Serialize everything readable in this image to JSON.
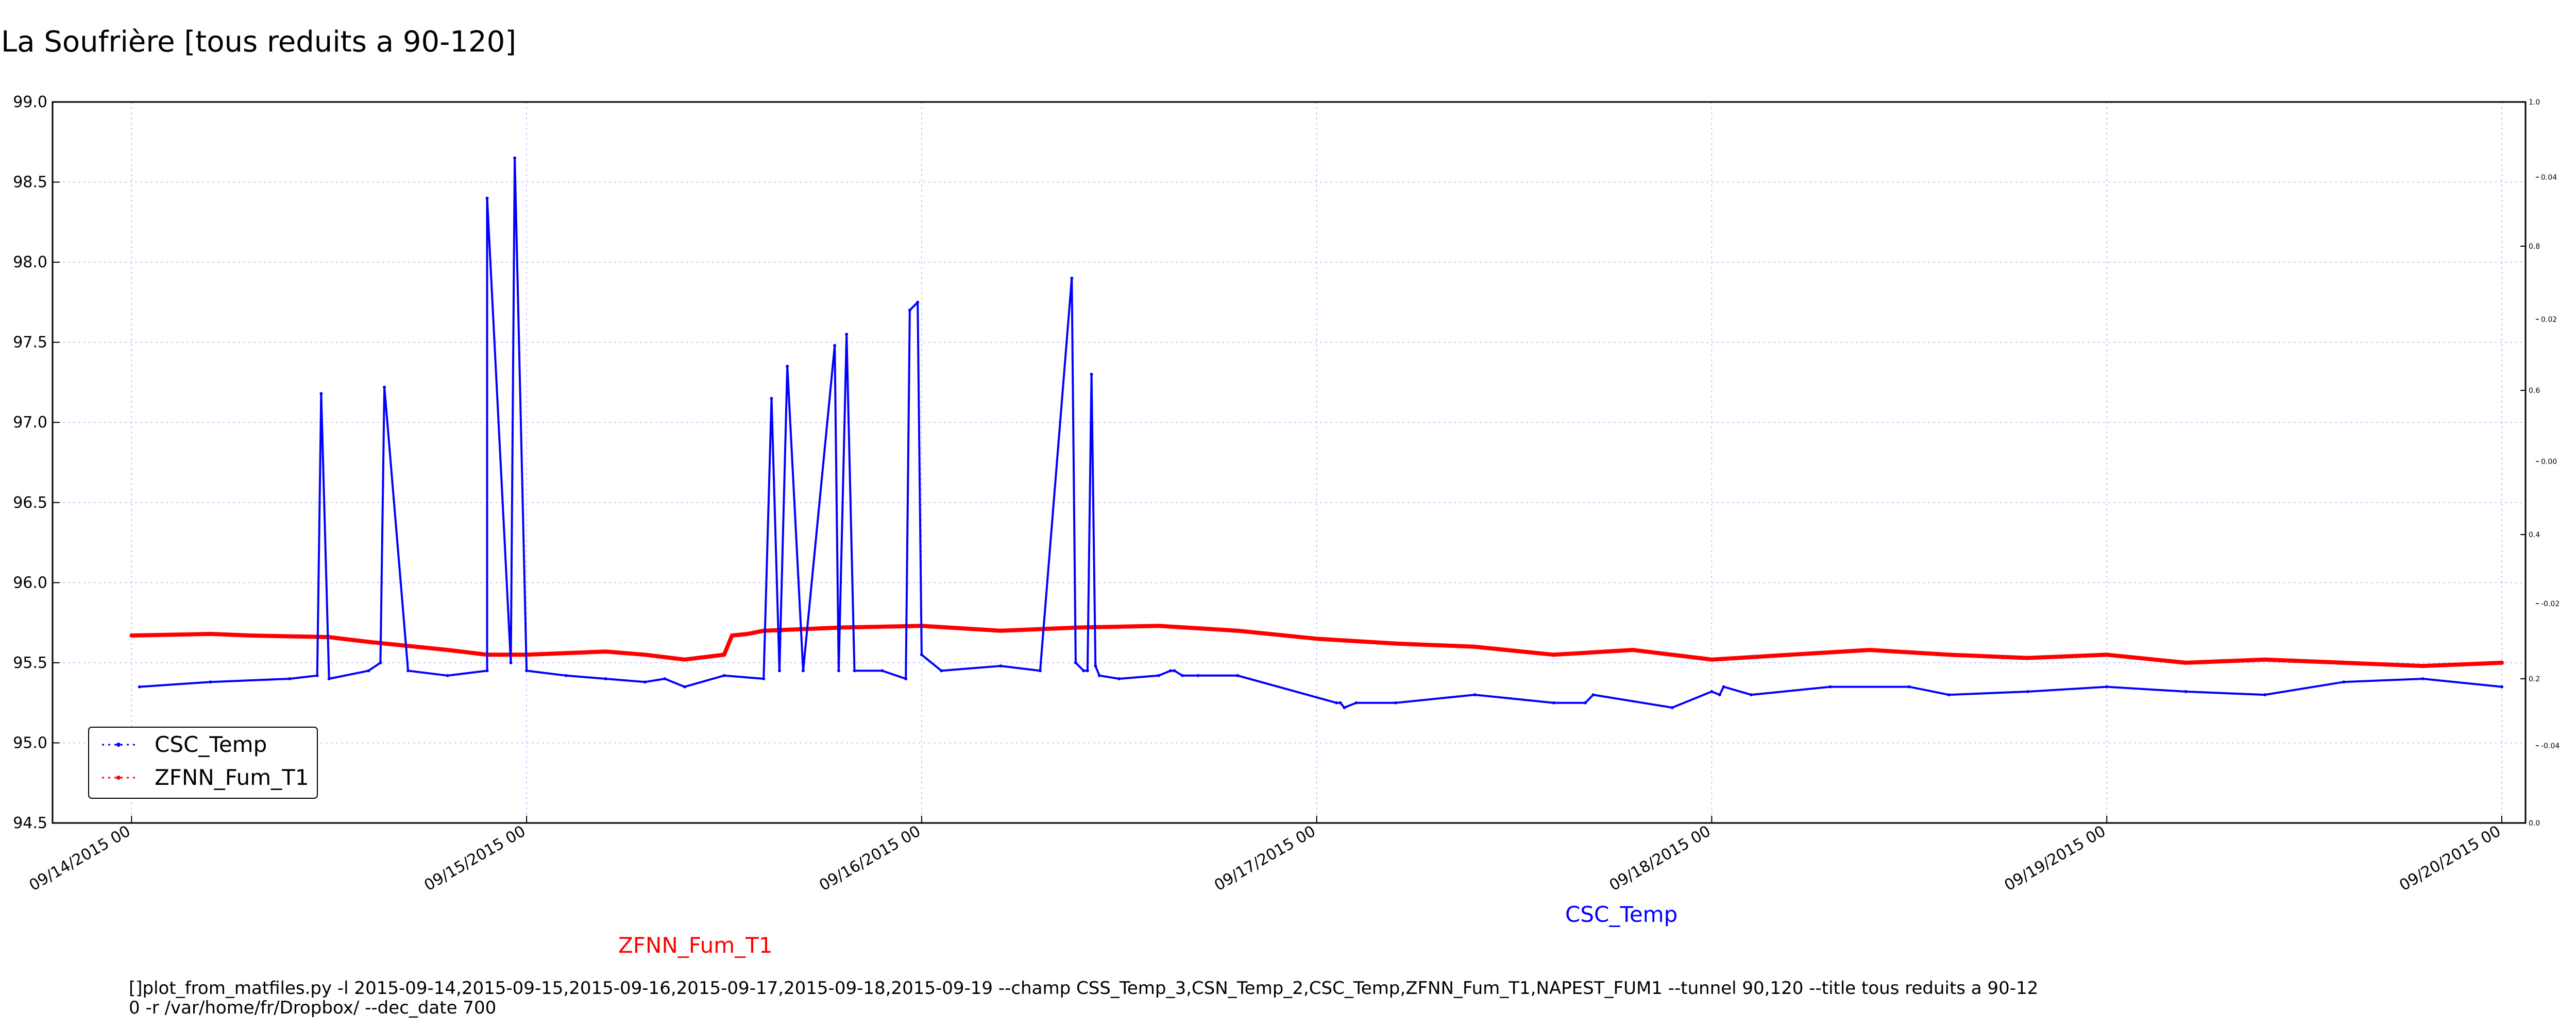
{
  "colors": {
    "series1": "#0000ff",
    "series2": "#ff0000",
    "grid": "#b8b8ff"
  },
  "chart_data": {
    "type": "line",
    "title": "La Soufrière [tous reduits a 90-120]",
    "ylim": [
      94.5,
      99.0
    ],
    "y_ticks": [
      "94.5",
      "95.0",
      "95.5",
      "96.0",
      "96.5",
      "97.0",
      "97.5",
      "98.0",
      "98.5",
      "99.0"
    ],
    "y_tick_values": [
      94.5,
      95.0,
      95.5,
      96.0,
      96.5,
      97.0,
      97.5,
      98.0,
      98.5,
      99.0
    ],
    "x_ticks": [
      "09/14/2015 00",
      "09/15/2015 00",
      "09/16/2015 00",
      "09/17/2015 00",
      "09/18/2015 00",
      "09/19/2015 00",
      "09/20/2015 00"
    ],
    "right_axis_ticks": [
      "0.0",
      "0.2",
      "0.4",
      "0.6",
      "0.8",
      "1.0"
    ],
    "right_axis2_ticks": [
      "-0.04",
      "-0.02",
      "0.00",
      "0.02",
      "0.04"
    ],
    "grid": true,
    "legend_position": "lower-left",
    "series": [
      {
        "name": "CSC_Temp",
        "x": [
          0.02,
          0.2,
          0.4,
          0.47,
          0.48,
          0.5,
          0.6,
          0.63,
          0.64,
          0.7,
          0.8,
          0.9,
          0.9,
          0.96,
          0.97,
          1.0,
          1.1,
          1.2,
          1.3,
          1.35,
          1.4,
          1.5,
          1.6,
          1.62,
          1.64,
          1.66,
          1.7,
          1.78,
          1.79,
          1.81,
          1.83,
          1.9,
          1.96,
          1.97,
          1.99,
          2.0,
          2.05,
          2.2,
          2.3,
          2.38,
          2.39,
          2.41,
          2.42,
          2.43,
          2.44,
          2.45,
          2.5,
          2.6,
          2.63,
          2.64,
          2.66,
          2.7,
          2.8,
          3.05,
          3.06,
          3.07,
          3.1,
          3.2,
          3.4,
          3.6,
          3.68,
          3.7,
          3.9,
          4.0,
          4.02,
          4.03,
          4.1,
          4.3,
          4.5,
          4.6,
          4.8,
          5.0,
          5.2,
          5.4,
          5.6,
          5.8,
          6.0
        ],
        "values": [
          95.35,
          95.38,
          95.4,
          95.42,
          97.18,
          95.4,
          95.45,
          95.5,
          97.22,
          95.45,
          95.42,
          95.45,
          98.4,
          95.5,
          98.65,
          95.45,
          95.42,
          95.4,
          95.38,
          95.4,
          95.35,
          95.42,
          95.4,
          97.15,
          95.45,
          97.35,
          95.45,
          97.48,
          95.45,
          97.55,
          95.45,
          95.45,
          95.4,
          97.7,
          97.75,
          95.55,
          95.45,
          95.48,
          95.45,
          97.9,
          95.5,
          95.45,
          95.45,
          97.3,
          95.48,
          95.42,
          95.4,
          95.42,
          95.45,
          95.45,
          95.42,
          95.42,
          95.42,
          95.25,
          95.25,
          95.22,
          95.25,
          95.25,
          95.3,
          95.25,
          95.25,
          95.3,
          95.22,
          95.32,
          95.3,
          95.35,
          95.3,
          95.35,
          95.35,
          95.3,
          95.32,
          95.35,
          95.32,
          95.3,
          95.38,
          95.4,
          95.35
        ]
      },
      {
        "name": "ZFNN_Fum_T1",
        "x": [
          0.0,
          0.2,
          0.3,
          0.5,
          0.6,
          0.8,
          0.9,
          1.0,
          1.2,
          1.3,
          1.4,
          1.5,
          1.52,
          1.56,
          1.6,
          1.8,
          2.0,
          2.2,
          2.4,
          2.6,
          2.8,
          3.0,
          3.2,
          3.4,
          3.6,
          3.8,
          4.0,
          4.2,
          4.4,
          4.6,
          4.8,
          5.0,
          5.2,
          5.4,
          5.6,
          5.8,
          6.0
        ],
        "values": [
          95.67,
          95.68,
          95.67,
          95.66,
          95.63,
          95.58,
          95.55,
          95.55,
          95.57,
          95.55,
          95.52,
          95.55,
          95.67,
          95.68,
          95.7,
          95.72,
          95.73,
          95.7,
          95.72,
          95.73,
          95.7,
          95.65,
          95.62,
          95.6,
          95.55,
          95.58,
          95.52,
          95.55,
          95.58,
          95.55,
          95.53,
          95.55,
          95.5,
          95.52,
          95.5,
          95.48,
          95.5
        ]
      }
    ]
  },
  "legend": {
    "items": [
      "CSC_Temp",
      "ZFNN_Fum_T1"
    ]
  },
  "axis_labels": {
    "red_label": "ZFNN_Fum_T1",
    "blue_label": "CSC_Temp"
  },
  "command": {
    "line1": "[]plot_from_matfiles.py -l 2015-09-14,2015-09-15,2015-09-16,2015-09-17,2015-09-18,2015-09-19 --champ CSS_Temp_3,CSN_Temp_2,CSC_Temp,ZFNN_Fum_T1,NAPEST_FUM1 --tunnel 90,120 --title tous reduits a 90-12",
    "line2": "0 -r /var/home/fr/Dropbox/ --dec_date 700"
  }
}
